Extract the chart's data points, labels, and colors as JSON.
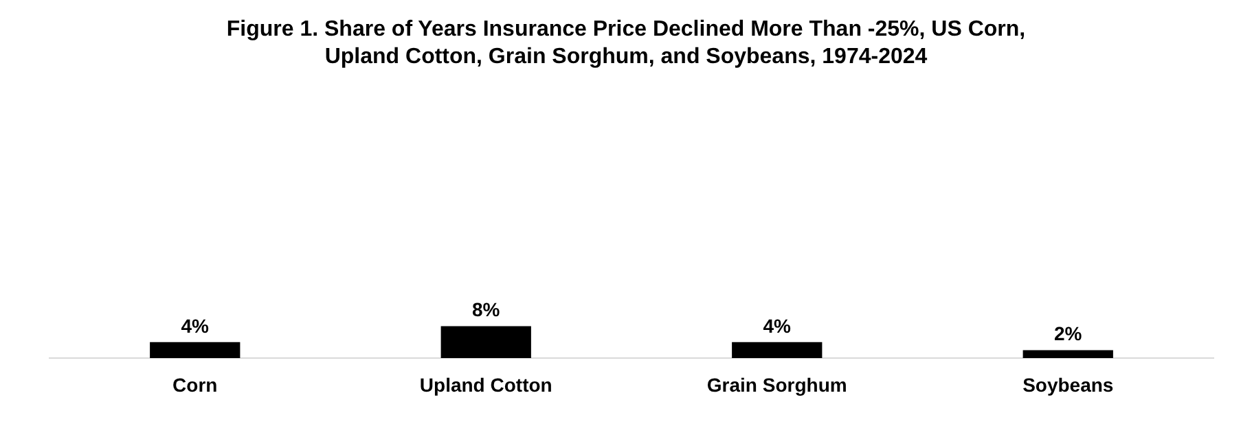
{
  "chart_data": {
    "type": "bar",
    "title": "Figure 1.  Share of Years Insurance Price Declined More Than -25%, US Corn, Upland Cotton, Grain Sorghum, and Soybeans, 1974-2024",
    "categories": [
      "Corn",
      "Upland Cotton",
      "Grain Sorghum",
      "Soybeans"
    ],
    "values": [
      4,
      8,
      4,
      2
    ],
    "value_labels": [
      "4%",
      "8%",
      "4%",
      "2%"
    ],
    "color": "#000000",
    "grid": false,
    "legend": false
  }
}
